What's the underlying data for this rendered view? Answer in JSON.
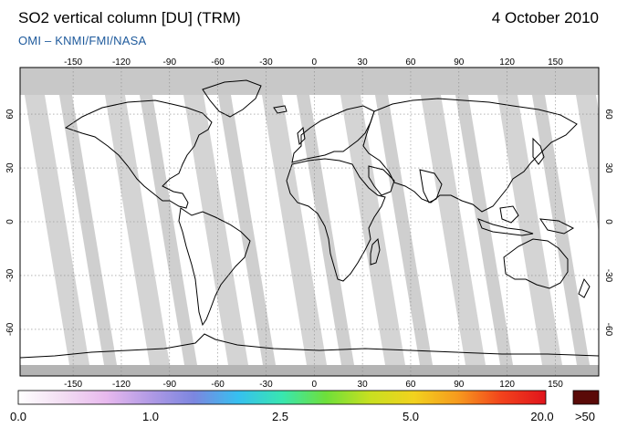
{
  "header": {
    "title": "SO2 vertical column [DU] (TRM)",
    "date": "4 October 2010",
    "credit": "OMI  –  KNMI/FMI/NASA"
  },
  "map": {
    "projection": "equirectangular",
    "lon_ticks": [
      "-150",
      "-120",
      "-90",
      "-60",
      "-30",
      "0",
      "30",
      "60",
      "90",
      "120",
      "150"
    ],
    "lat_ticks": [
      "60",
      "30",
      "0",
      "-30",
      "-60"
    ],
    "colors": {
      "ocean_land": "#ffffff",
      "polar_no_data": "#c8c8c8",
      "orbit_gap_light": "#d4d4d4",
      "orbit_gap_dark": "#a8a8a8",
      "coastline": "#000000",
      "grid": "#888888"
    }
  },
  "colorbar": {
    "labels": [
      "0.0",
      "1.0",
      "2.5",
      "5.0",
      "20.0",
      ">50"
    ],
    "gradient_colors": [
      "#ffffff",
      "#f3def3",
      "#e8b9ee",
      "#b19ae5",
      "#7c86e0",
      "#36c0f0",
      "#38e6b0",
      "#6ee03a",
      "#c8e020",
      "#f2d21e",
      "#f69a1e",
      "#f2421c",
      "#e0141c"
    ],
    "overflow_color": "#5a0a08"
  }
}
